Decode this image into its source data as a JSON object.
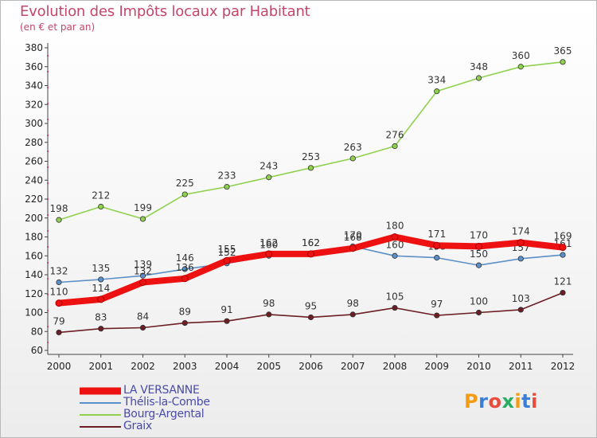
{
  "title": "Evolution des Impôts locaux par Habitant",
  "subtitle": "(en € et par an)",
  "logo_text": "Proxiti",
  "logo_colors": [
    "#f39c12",
    "#3a7fd5",
    "#e74c3c",
    "#27ae60",
    "#f39c12",
    "#3a7fd5",
    "#e74c3c"
  ],
  "chart_data": {
    "type": "line",
    "title": "Evolution des Impôts locaux par Habitant",
    "subtitle": "(en € et par an)",
    "xlabel": "",
    "ylabel": "",
    "categories": [
      "2000",
      "2001",
      "2002",
      "2003",
      "2004",
      "2005",
      "2006",
      "2007",
      "2008",
      "2009",
      "2010",
      "2011",
      "2012"
    ],
    "ylim": [
      60,
      380
    ],
    "yticks": [
      60,
      80,
      100,
      120,
      140,
      160,
      180,
      200,
      220,
      240,
      260,
      280,
      300,
      320,
      340,
      360,
      380
    ],
    "grid": false,
    "legend_position": "bottom-left",
    "series": [
      {
        "name": "Bourg-Argental",
        "color": "#8fd14f",
        "values": [
          198,
          212,
          199,
          225,
          233,
          243,
          253,
          263,
          276,
          334,
          348,
          360,
          365
        ]
      },
      {
        "name": "Thélis-la-Combe",
        "color": "#5b8fc7",
        "values": [
          132,
          135,
          139,
          146,
          152,
          160,
          162,
          170,
          160,
          158,
          150,
          157,
          161
        ]
      },
      {
        "name": "Graix",
        "color": "#6b1f24",
        "values": [
          79,
          83,
          84,
          89,
          91,
          98,
          95,
          98,
          105,
          97,
          100,
          103,
          121
        ]
      },
      {
        "name": "LA VERSANNE",
        "color": "#ee1111",
        "values": [
          110,
          114,
          132,
          136,
          155,
          162,
          162,
          168,
          180,
          171,
          170,
          174,
          169
        ]
      }
    ],
    "legend_order": [
      "LA VERSANNE",
      "Thélis-la-Combe",
      "Bourg-Argental",
      "Graix"
    ]
  }
}
